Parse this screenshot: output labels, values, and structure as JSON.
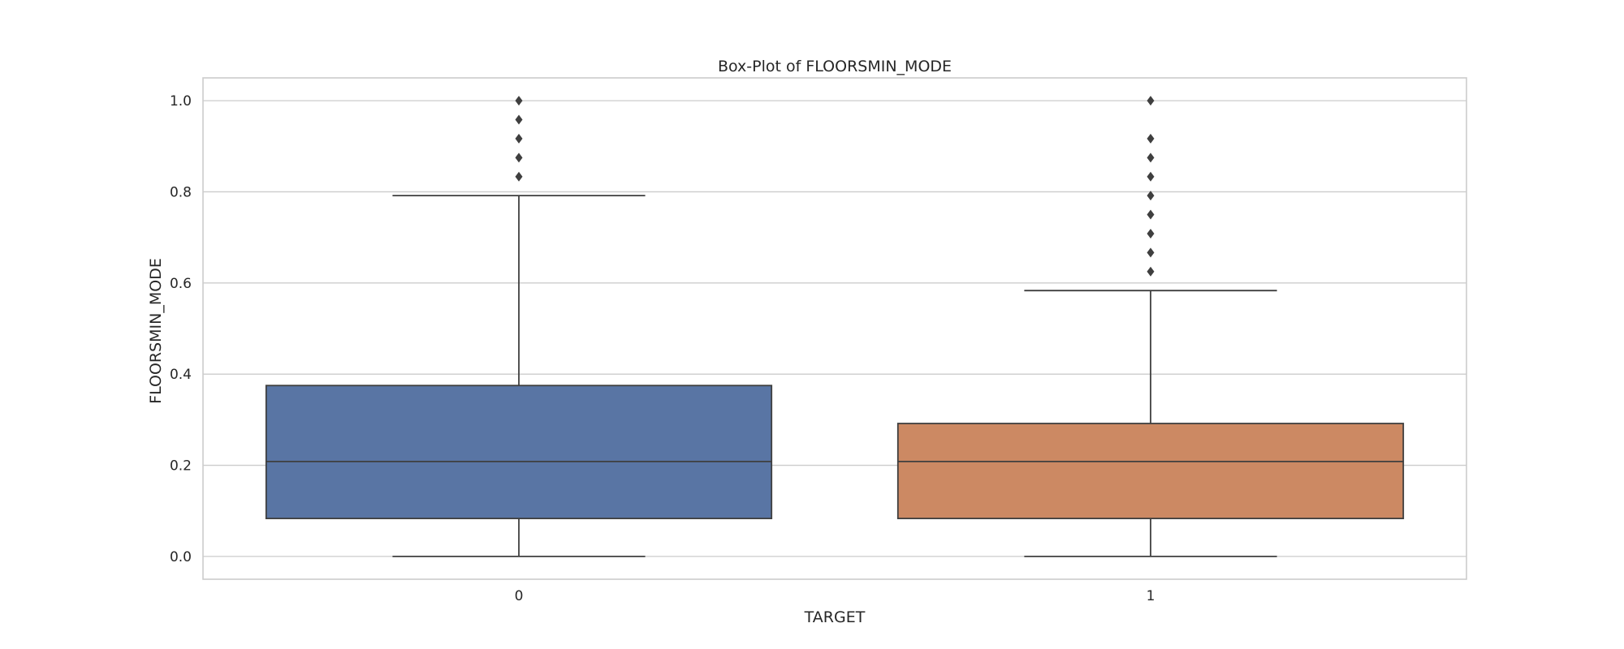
{
  "chart_data": {
    "type": "box",
    "title": "Box-Plot of FLOORSMIN_MODE",
    "xlabel": "TARGET",
    "ylabel": "FLOORSMIN_MODE",
    "categories": [
      "0",
      "1"
    ],
    "ylim": [
      -0.05,
      1.05
    ],
    "yticks": [
      "0.0",
      "0.2",
      "0.4",
      "0.6",
      "0.8",
      "1.0"
    ],
    "grid": true,
    "colors": [
      "#5975a4",
      "#cc8963"
    ],
    "boxes": [
      {
        "category": "0",
        "whisker_low": 0.0,
        "q1": 0.0833,
        "median": 0.2083,
        "q3": 0.375,
        "whisker_high": 0.7917,
        "outliers": [
          0.8333,
          0.875,
          0.9167,
          0.9583,
          1.0
        ]
      },
      {
        "category": "1",
        "whisker_low": 0.0,
        "q1": 0.0833,
        "median": 0.2083,
        "q3": 0.2917,
        "whisker_high": 0.5833,
        "outliers": [
          0.625,
          0.6667,
          0.7083,
          0.75,
          0.7917,
          0.8333,
          0.875,
          0.9167,
          1.0
        ]
      }
    ]
  }
}
